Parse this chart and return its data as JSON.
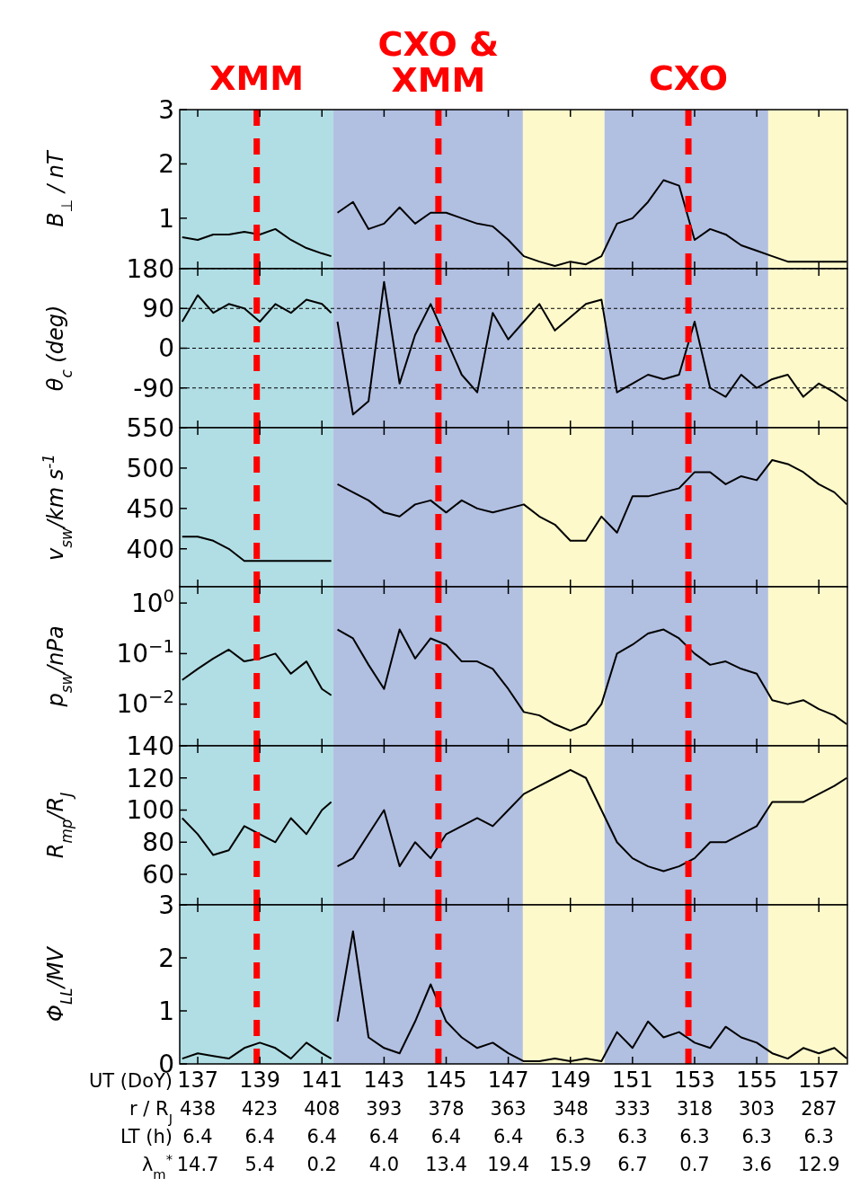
{
  "chart_data": [
    {
      "type": "line",
      "ylabel": "B$_{⊥}$  / nT",
      "xlim": [
        136.42,
        157.92
      ],
      "xticks": [
        137,
        139,
        141,
        143,
        145,
        147,
        149,
        151,
        153,
        155,
        157
      ],
      "ylim": [
        0.07,
        3
      ],
      "yticks": [
        1,
        2,
        3
      ],
      "tick_labels": "y",
      "grid": false,
      "x": [
        136.5,
        137,
        137.5,
        138,
        138.5,
        139,
        139.5,
        140,
        140.5,
        141,
        141.3,
        141.4,
        141.5,
        142,
        142.5,
        143,
        143.5,
        144,
        144.5,
        145,
        145.5,
        146,
        146.5,
        147,
        147.5,
        148,
        148.5,
        149,
        149.5,
        150,
        150.5,
        151,
        151.5,
        152,
        152.5,
        153,
        153.5,
        154,
        154.5,
        155,
        155.5,
        156,
        156.5,
        157,
        157.5,
        157.9
      ],
      "series": [
        {
          "color": "#000000",
          "values": [
            0.65,
            0.6,
            0.7,
            0.7,
            0.75,
            0.7,
            0.8,
            0.6,
            0.45,
            0.35,
            0.3,
            null,
            1.1,
            1.3,
            0.8,
            0.9,
            1.2,
            0.9,
            1.1,
            1.1,
            1.0,
            0.9,
            0.85,
            0.6,
            0.3,
            0.2,
            0.12,
            0.2,
            0.15,
            0.3,
            0.9,
            1.0,
            1.3,
            1.7,
            1.6,
            0.6,
            0.8,
            0.7,
            0.5,
            0.4,
            0.3,
            0.2,
            0.2,
            0.2,
            0.2,
            0.2
          ]
        }
      ],
      "bands": [
        {
          "axis": "x",
          "from": 136.42,
          "to": 141.37,
          "color": "#b1dee4"
        },
        {
          "axis": "x",
          "from": 141.37,
          "to": 147.47,
          "color": "#b1bfe1"
        },
        {
          "axis": "x",
          "from": 147.47,
          "to": 150.1,
          "color": "#fdf9cb"
        },
        {
          "axis": "x",
          "from": 150.1,
          "to": 155.37,
          "color": "#b1bfe1"
        },
        {
          "axis": "x",
          "from": 155.37,
          "to": 157.92,
          "color": "#fdf9cb"
        }
      ],
      "ref_lines": [
        {
          "axis": "x",
          "value": 138.9,
          "label": "XMM",
          "color": "#ff0000",
          "line_style": "dashed"
        },
        {
          "axis": "x",
          "value": 144.75,
          "label": "CXO &\nXMM",
          "color": "#ff0000",
          "line_style": "dashed"
        },
        {
          "axis": "x",
          "value": 152.8,
          "label": "CXO",
          "color": "#ff0000",
          "line_style": "dashed"
        }
      ]
    },
    {
      "type": "line",
      "ylabel": "θ$_{c}$  (deg)",
      "xlim": [
        136.42,
        157.92
      ],
      "xticks": [
        137,
        139,
        141,
        143,
        145,
        147,
        149,
        151,
        153,
        155,
        157
      ],
      "ylim": [
        -180,
        180
      ],
      "yticks": [
        -90,
        0,
        90,
        180
      ],
      "tick_labels": "y",
      "grid": "y",
      "x": [
        136.5,
        137,
        137.5,
        138,
        138.5,
        139,
        139.5,
        140,
        140.5,
        141,
        141.3,
        141.4,
        141.5,
        142,
        142.5,
        143,
        143.5,
        144,
        144.5,
        145,
        145.5,
        146,
        146.5,
        147,
        147.5,
        148,
        148.5,
        149,
        149.5,
        150,
        150.5,
        151,
        151.5,
        152,
        152.5,
        153,
        153.5,
        154,
        154.5,
        155,
        155.5,
        156,
        156.5,
        157,
        157.5,
        157.9
      ],
      "series": [
        {
          "color": "#000000",
          "values": [
            60,
            120,
            80,
            100,
            90,
            60,
            100,
            80,
            110,
            100,
            80,
            null,
            60,
            -150,
            -120,
            150,
            -80,
            30,
            100,
            20,
            -60,
            -100,
            80,
            20,
            60,
            100,
            40,
            70,
            100,
            110,
            -100,
            -80,
            -60,
            -70,
            -60,
            60,
            -90,
            -110,
            -60,
            -90,
            -70,
            -60,
            -110,
            -80,
            -100,
            -120
          ]
        }
      ],
      "bands": [
        {
          "axis": "x",
          "from": 136.42,
          "to": 141.37,
          "color": "#b1dee4"
        },
        {
          "axis": "x",
          "from": 141.37,
          "to": 147.47,
          "color": "#b1bfe1"
        },
        {
          "axis": "x",
          "from": 147.47,
          "to": 150.1,
          "color": "#fdf9cb"
        },
        {
          "axis": "x",
          "from": 150.1,
          "to": 155.37,
          "color": "#b1bfe1"
        },
        {
          "axis": "x",
          "from": 155.37,
          "to": 157.92,
          "color": "#fdf9cb"
        }
      ],
      "ref_lines": [
        {
          "axis": "x",
          "value": 138.9,
          "color": "#ff0000",
          "line_style": "dashed"
        },
        {
          "axis": "x",
          "value": 144.75,
          "color": "#ff0000",
          "line_style": "dashed"
        },
        {
          "axis": "x",
          "value": 152.8,
          "color": "#ff0000",
          "line_style": "dashed"
        }
      ]
    },
    {
      "type": "line",
      "ylabel": "v$_{sw}$/km s$^{-1}$",
      "xlim": [
        136.42,
        157.92
      ],
      "xticks": [
        137,
        139,
        141,
        143,
        145,
        147,
        149,
        151,
        153,
        155,
        157
      ],
      "ylim": [
        353,
        550
      ],
      "yticks": [
        400,
        450,
        500,
        550
      ],
      "tick_labels": "y",
      "grid": false,
      "x": [
        136.5,
        137,
        137.5,
        138,
        138.5,
        139,
        139.5,
        140,
        140.5,
        141,
        141.3,
        141.4,
        141.5,
        142,
        142.5,
        143,
        143.5,
        144,
        144.5,
        145,
        145.5,
        146,
        146.5,
        147,
        147.5,
        148,
        148.5,
        149,
        149.5,
        150,
        150.5,
        151,
        151.5,
        152,
        152.5,
        153,
        153.5,
        154,
        154.5,
        155,
        155.5,
        156,
        156.5,
        157,
        157.5,
        157.9
      ],
      "series": [
        {
          "color": "#000000",
          "values": [
            415,
            415,
            410,
            400,
            385,
            385,
            385,
            385,
            385,
            385,
            385,
            null,
            480,
            470,
            460,
            445,
            440,
            455,
            460,
            445,
            460,
            450,
            445,
            450,
            455,
            440,
            430,
            410,
            410,
            440,
            420,
            465,
            465,
            470,
            475,
            495,
            495,
            480,
            490,
            485,
            510,
            505,
            495,
            480,
            470,
            455
          ]
        }
      ],
      "bands": [
        {
          "axis": "x",
          "from": 136.42,
          "to": 141.37,
          "color": "#b1dee4"
        },
        {
          "axis": "x",
          "from": 141.37,
          "to": 147.47,
          "color": "#b1bfe1"
        },
        {
          "axis": "x",
          "from": 147.47,
          "to": 150.1,
          "color": "#fdf9cb"
        },
        {
          "axis": "x",
          "from": 150.1,
          "to": 155.37,
          "color": "#b1bfe1"
        },
        {
          "axis": "x",
          "from": 155.37,
          "to": 157.92,
          "color": "#fdf9cb"
        }
      ],
      "ref_lines": [
        {
          "axis": "x",
          "value": 138.9,
          "color": "#ff0000",
          "line_style": "dashed"
        },
        {
          "axis": "x",
          "value": 144.75,
          "color": "#ff0000",
          "line_style": "dashed"
        },
        {
          "axis": "x",
          "value": 152.8,
          "color": "#ff0000",
          "line_style": "dashed"
        }
      ]
    },
    {
      "type": "line",
      "ylabel": "p$_{sw}$/nPa",
      "log": "y",
      "xlim": [
        136.42,
        157.92
      ],
      "xticks": [
        137,
        139,
        141,
        143,
        145,
        147,
        149,
        151,
        153,
        155,
        157
      ],
      "ylim": [
        0.0015,
        2.1
      ],
      "yticks": [
        {
          "value": 0.01,
          "label": "10$^{−2}$"
        },
        {
          "value": 0.1,
          "label": "10$^{−1}$"
        },
        {
          "value": 1,
          "label": "10$^{0}$"
        }
      ],
      "tick_labels": "y",
      "grid": false,
      "x": [
        136.5,
        137,
        137.5,
        138,
        138.5,
        139,
        139.5,
        140,
        140.5,
        141,
        141.3,
        141.4,
        141.5,
        142,
        142.5,
        143,
        143.5,
        144,
        144.5,
        145,
        145.5,
        146,
        146.5,
        147,
        147.5,
        148,
        148.5,
        149,
        149.5,
        150,
        150.5,
        151,
        151.5,
        152,
        152.5,
        153,
        153.5,
        154,
        154.5,
        155,
        155.5,
        156,
        156.5,
        157,
        157.5,
        157.9
      ],
      "series": [
        {
          "color": "#000000",
          "values": [
            0.03,
            0.05,
            0.08,
            0.12,
            0.07,
            0.08,
            0.1,
            0.04,
            0.07,
            0.02,
            0.015,
            null,
            0.3,
            0.2,
            0.06,
            0.02,
            0.3,
            0.08,
            0.2,
            0.15,
            0.07,
            0.07,
            0.05,
            0.02,
            0.007,
            0.006,
            0.004,
            0.003,
            0.004,
            0.01,
            0.1,
            0.15,
            0.25,
            0.3,
            0.2,
            0.1,
            0.06,
            0.07,
            0.05,
            0.04,
            0.012,
            0.01,
            0.012,
            0.008,
            0.006,
            0.004
          ]
        }
      ],
      "bands": [
        {
          "axis": "x",
          "from": 136.42,
          "to": 141.37,
          "color": "#b1dee4"
        },
        {
          "axis": "x",
          "from": 141.37,
          "to": 147.47,
          "color": "#b1bfe1"
        },
        {
          "axis": "x",
          "from": 147.47,
          "to": 150.1,
          "color": "#fdf9cb"
        },
        {
          "axis": "x",
          "from": 150.1,
          "to": 155.37,
          "color": "#b1bfe1"
        },
        {
          "axis": "x",
          "from": 155.37,
          "to": 157.92,
          "color": "#fdf9cb"
        }
      ],
      "ref_lines": [
        {
          "axis": "x",
          "value": 138.9,
          "color": "#ff0000",
          "line_style": "dashed"
        },
        {
          "axis": "x",
          "value": 144.75,
          "color": "#ff0000",
          "line_style": "dashed"
        },
        {
          "axis": "x",
          "value": 152.8,
          "color": "#ff0000",
          "line_style": "dashed"
        }
      ]
    },
    {
      "type": "line",
      "ylabel": "R$_{mp}$/R$_{J}$",
      "xlim": [
        136.42,
        157.92
      ],
      "xticks": [
        137,
        139,
        141,
        143,
        145,
        147,
        149,
        151,
        153,
        155,
        157
      ],
      "ylim": [
        41,
        140
      ],
      "yticks": [
        60,
        80,
        100,
        120,
        140
      ],
      "tick_labels": "y",
      "grid": false,
      "x": [
        136.5,
        137,
        137.5,
        138,
        138.5,
        139,
        139.5,
        140,
        140.5,
        141,
        141.3,
        141.4,
        141.5,
        142,
        142.5,
        143,
        143.5,
        144,
        144.5,
        145,
        145.5,
        146,
        146.5,
        147,
        147.5,
        148,
        148.5,
        149,
        149.5,
        150,
        150.5,
        151,
        151.5,
        152,
        152.5,
        153,
        153.5,
        154,
        154.5,
        155,
        155.5,
        156,
        156.5,
        157,
        157.5,
        157.9
      ],
      "series": [
        {
          "color": "#000000",
          "values": [
            95,
            85,
            72,
            75,
            90,
            85,
            80,
            95,
            85,
            100,
            105,
            null,
            65,
            70,
            85,
            100,
            65,
            80,
            70,
            85,
            90,
            95,
            90,
            100,
            110,
            115,
            120,
            125,
            120,
            100,
            80,
            70,
            65,
            62,
            65,
            70,
            80,
            80,
            85,
            90,
            105,
            105,
            105,
            110,
            115,
            120
          ]
        }
      ],
      "bands": [
        {
          "axis": "x",
          "from": 136.42,
          "to": 141.37,
          "color": "#b1dee4"
        },
        {
          "axis": "x",
          "from": 141.37,
          "to": 147.47,
          "color": "#b1bfe1"
        },
        {
          "axis": "x",
          "from": 147.47,
          "to": 150.1,
          "color": "#fdf9cb"
        },
        {
          "axis": "x",
          "from": 150.1,
          "to": 155.37,
          "color": "#b1bfe1"
        },
        {
          "axis": "x",
          "from": 155.37,
          "to": 157.92,
          "color": "#fdf9cb"
        }
      ],
      "ref_lines": [
        {
          "axis": "x",
          "value": 138.9,
          "color": "#ff0000",
          "line_style": "dashed"
        },
        {
          "axis": "x",
          "value": 144.75,
          "color": "#ff0000",
          "line_style": "dashed"
        },
        {
          "axis": "x",
          "value": 152.8,
          "color": "#ff0000",
          "line_style": "dashed"
        }
      ]
    },
    {
      "type": "line",
      "ylabel": "Φ$_{LL}$/MV",
      "xlabel": "UT (DoY)",
      "xlim": [
        136.42,
        157.92
      ],
      "xticks": [
        137,
        139,
        141,
        143,
        145,
        147,
        149,
        151,
        153,
        155,
        157
      ],
      "annotations": [
        "r / R$_{J}$\t438\t423\t408\t393\t378\t363\t348\t333\t318\t303\t287",
        "LT (h)\t6.4\t6.4\t6.4\t6.4\t6.4\t6.4\t6.3\t6.3\t6.3\t6.3\t6.3",
        "λ$_{m}$$^{*}$\t14.7\t5.4\t0.2\t4.0\t13.4\t19.4\t15.9\t6.7\t0.7\t3.6\t12.9"
      ],
      "ylim": [
        0,
        3
      ],
      "yticks": [
        0,
        1,
        2,
        3
      ],
      "grid": false,
      "x": [
        136.5,
        137,
        137.5,
        138,
        138.5,
        139,
        139.5,
        140,
        140.5,
        141,
        141.3,
        141.4,
        141.5,
        142,
        142.5,
        143,
        143.5,
        144,
        144.5,
        145,
        145.5,
        146,
        146.5,
        147,
        147.5,
        148,
        148.5,
        149,
        149.5,
        150,
        150.5,
        151,
        151.5,
        152,
        152.5,
        153,
        153.5,
        154,
        154.5,
        155,
        155.5,
        156,
        156.5,
        157,
        157.5,
        157.9
      ],
      "series": [
        {
          "color": "#000000",
          "values": [
            0.1,
            0.2,
            0.15,
            0.1,
            0.3,
            0.4,
            0.3,
            0.1,
            0.4,
            0.2,
            0.1,
            null,
            0.8,
            2.5,
            0.5,
            0.3,
            0.2,
            0.8,
            1.5,
            0.8,
            0.5,
            0.3,
            0.4,
            0.2,
            0.05,
            0.05,
            0.1,
            0.05,
            0.1,
            0.05,
            0.6,
            0.3,
            0.8,
            0.5,
            0.6,
            0.4,
            0.3,
            0.7,
            0.5,
            0.4,
            0.2,
            0.1,
            0.3,
            0.2,
            0.3,
            0.1
          ]
        }
      ],
      "bands": [
        {
          "axis": "x",
          "from": 136.42,
          "to": 141.37,
          "color": "#b1dee4"
        },
        {
          "axis": "x",
          "from": 141.37,
          "to": 147.47,
          "color": "#b1bfe1"
        },
        {
          "axis": "x",
          "from": 147.47,
          "to": 150.1,
          "color": "#fdf9cb"
        },
        {
          "axis": "x",
          "from": 150.1,
          "to": 155.37,
          "color": "#b1bfe1"
        },
        {
          "axis": "x",
          "from": 155.37,
          "to": 157.92,
          "color": "#fdf9cb"
        }
      ],
      "ref_lines": [
        {
          "axis": "x",
          "value": 138.9,
          "color": "#ff0000",
          "line_style": "dashed"
        },
        {
          "axis": "x",
          "value": 144.75,
          "color": "#ff0000",
          "line_style": "dashed"
        },
        {
          "axis": "x",
          "value": 152.8,
          "color": "#ff0000",
          "line_style": "dashed"
        }
      ]
    }
  ]
}
